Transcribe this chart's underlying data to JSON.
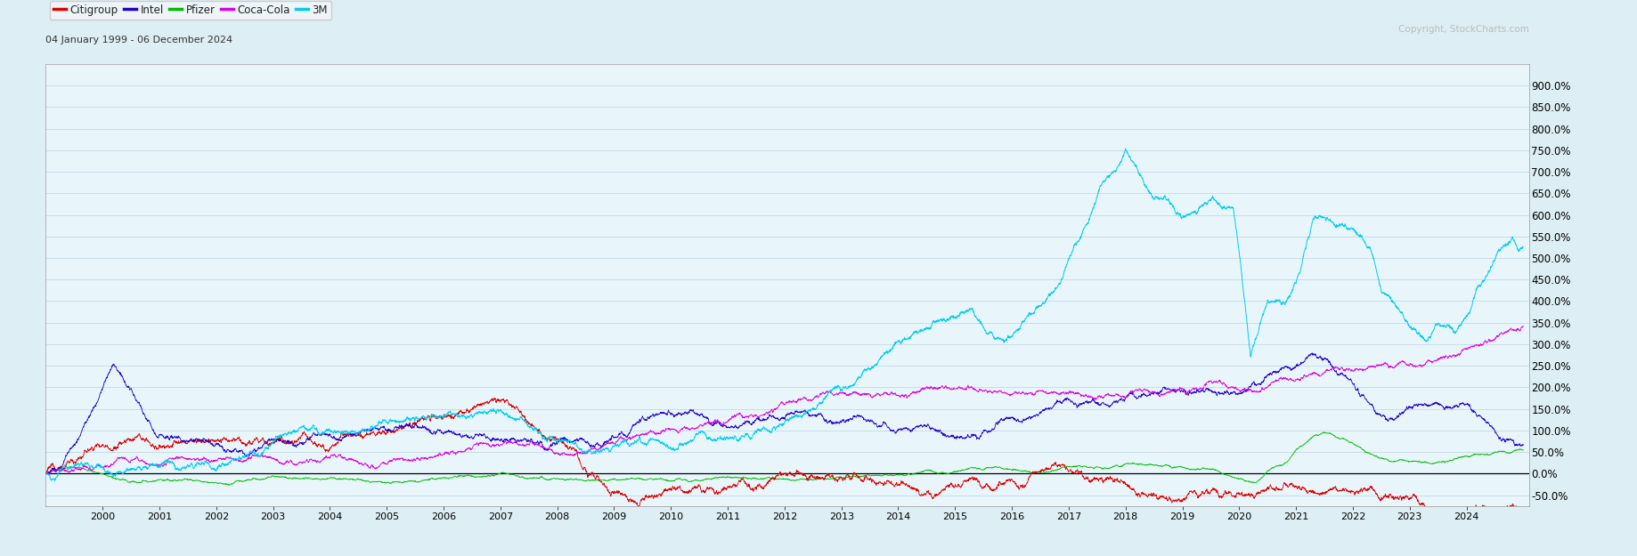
{
  "title": "04 January 1999 - 06 December 2024",
  "copyright": "Copyright, StockCharts.com",
  "legend": [
    "Citigroup",
    "Intel",
    "Pfizer",
    "Coca-Cola",
    "3M"
  ],
  "colors": {
    "Citigroup": "#dd0000",
    "Intel": "#2200cc",
    "Pfizer": "#00bb00",
    "Coca-Cola": "#dd00dd",
    "3M": "#00ccee"
  },
  "ylim": [
    -75,
    950
  ],
  "yticks": [
    -50,
    0,
    50,
    100,
    150,
    200,
    250,
    300,
    350,
    400,
    450,
    500,
    550,
    600,
    650,
    700,
    750,
    800,
    850,
    900
  ],
  "background_color": "#ddeef5",
  "plot_bg": "#e8f6fc",
  "grid_color": "#c8dce8",
  "zero_line_color": "#000000",
  "border_color": "#aaaaaa",
  "fig_width": 18.38,
  "fig_height": 6.25,
  "dpi": 100
}
